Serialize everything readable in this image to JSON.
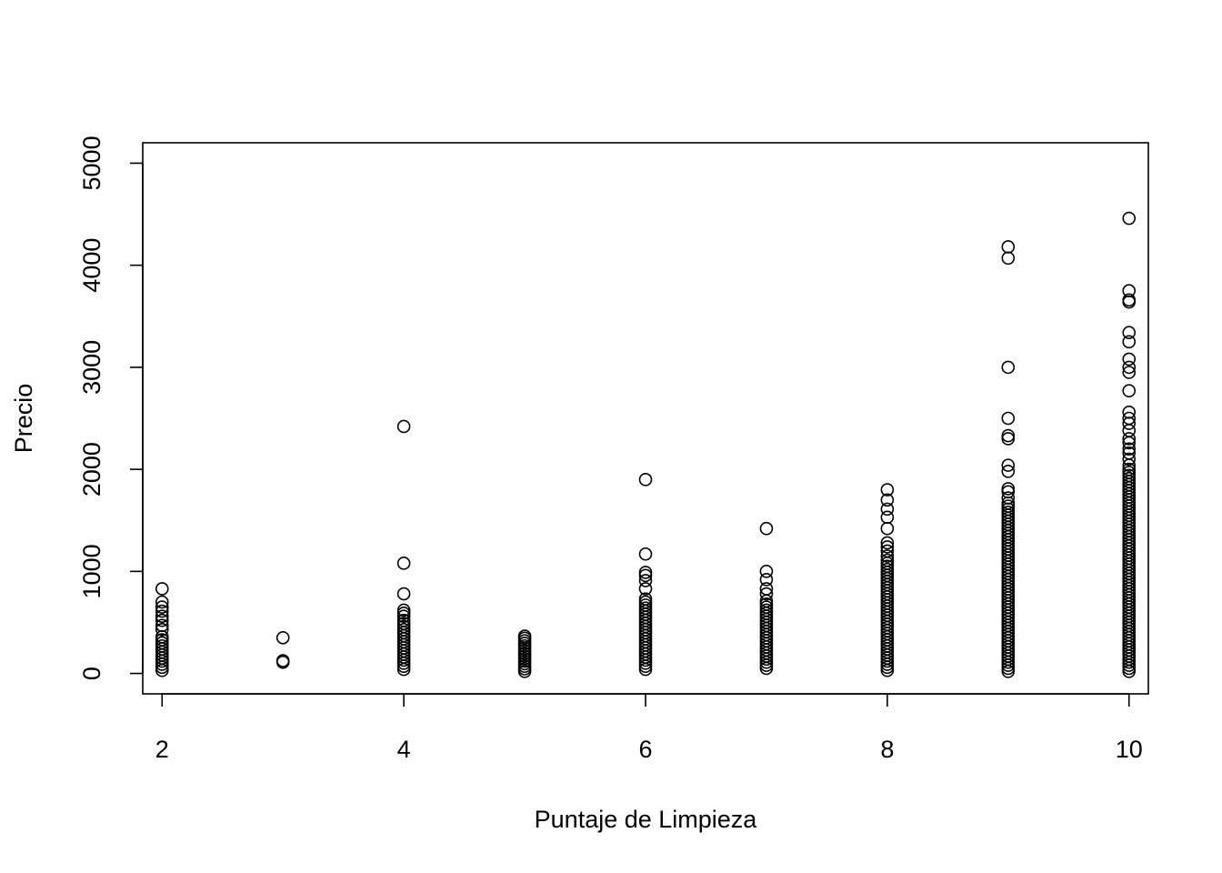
{
  "chart_data": {
    "type": "scatter",
    "title": "",
    "xlabel": "Puntaje de Limpieza",
    "ylabel": "Precio",
    "xlim": [
      1.84,
      10.16
    ],
    "ylim": [
      -200,
      5200
    ],
    "grid": false,
    "legend": "none",
    "x_ticks": [
      2,
      4,
      6,
      8,
      10
    ],
    "x_tick_labels": [
      "2",
      "4",
      "6",
      "8",
      "10"
    ],
    "y_ticks": [
      0,
      1000,
      2000,
      3000,
      4000,
      5000
    ],
    "y_tick_labels": [
      "0",
      "1000",
      "2000",
      "3000",
      "4000",
      "5000"
    ],
    "marker": "open-circle",
    "series": [
      {
        "points": [
          [
            2,
            30
          ],
          [
            2,
            60
          ],
          [
            2,
            90
          ],
          [
            2,
            120
          ],
          [
            2,
            150
          ],
          [
            2,
            180
          ],
          [
            2,
            210
          ],
          [
            2,
            240
          ],
          [
            2,
            270
          ],
          [
            2,
            300
          ],
          [
            2,
            330
          ],
          [
            2,
            360
          ],
          [
            2,
            430
          ],
          [
            2,
            470
          ],
          [
            2,
            520
          ],
          [
            2,
            560
          ],
          [
            2,
            610
          ],
          [
            2,
            650
          ],
          [
            2,
            700
          ],
          [
            2,
            830
          ],
          [
            3,
            110
          ],
          [
            3,
            125
          ],
          [
            3,
            350
          ],
          [
            4,
            40
          ],
          [
            4,
            70
          ],
          [
            4,
            100
          ],
          [
            4,
            130
          ],
          [
            4,
            160
          ],
          [
            4,
            190
          ],
          [
            4,
            220
          ],
          [
            4,
            250
          ],
          [
            4,
            280
          ],
          [
            4,
            310
          ],
          [
            4,
            340
          ],
          [
            4,
            370
          ],
          [
            4,
            400
          ],
          [
            4,
            430
          ],
          [
            4,
            460
          ],
          [
            4,
            490
          ],
          [
            4,
            520
          ],
          [
            4,
            560
          ],
          [
            4,
            590
          ],
          [
            4,
            620
          ],
          [
            4,
            780
          ],
          [
            4,
            1080
          ],
          [
            4,
            2420
          ],
          [
            5,
            20
          ],
          [
            5,
            45
          ],
          [
            5,
            70
          ],
          [
            5,
            95
          ],
          [
            5,
            120
          ],
          [
            5,
            145
          ],
          [
            5,
            170
          ],
          [
            5,
            195
          ],
          [
            5,
            220
          ],
          [
            5,
            245
          ],
          [
            5,
            270
          ],
          [
            5,
            295
          ],
          [
            5,
            320
          ],
          [
            5,
            345
          ],
          [
            5,
            365
          ],
          [
            6,
            40
          ],
          [
            6,
            70
          ],
          [
            6,
            100
          ],
          [
            6,
            130
          ],
          [
            6,
            160
          ],
          [
            6,
            190
          ],
          [
            6,
            220
          ],
          [
            6,
            250
          ],
          [
            6,
            280
          ],
          [
            6,
            310
          ],
          [
            6,
            340
          ],
          [
            6,
            370
          ],
          [
            6,
            400
          ],
          [
            6,
            430
          ],
          [
            6,
            460
          ],
          [
            6,
            490
          ],
          [
            6,
            520
          ],
          [
            6,
            550
          ],
          [
            6,
            580
          ],
          [
            6,
            610
          ],
          [
            6,
            640
          ],
          [
            6,
            670
          ],
          [
            6,
            700
          ],
          [
            6,
            730
          ],
          [
            6,
            830
          ],
          [
            6,
            910
          ],
          [
            6,
            960
          ],
          [
            6,
            990
          ],
          [
            6,
            1170
          ],
          [
            6,
            1900
          ],
          [
            7,
            50
          ],
          [
            7,
            80
          ],
          [
            7,
            110
          ],
          [
            7,
            140
          ],
          [
            7,
            170
          ],
          [
            7,
            200
          ],
          [
            7,
            230
          ],
          [
            7,
            260
          ],
          [
            7,
            290
          ],
          [
            7,
            320
          ],
          [
            7,
            350
          ],
          [
            7,
            380
          ],
          [
            7,
            410
          ],
          [
            7,
            440
          ],
          [
            7,
            470
          ],
          [
            7,
            500
          ],
          [
            7,
            530
          ],
          [
            7,
            560
          ],
          [
            7,
            590
          ],
          [
            7,
            620
          ],
          [
            7,
            650
          ],
          [
            7,
            680
          ],
          [
            7,
            710
          ],
          [
            7,
            780
          ],
          [
            7,
            830
          ],
          [
            7,
            920
          ],
          [
            7,
            1000
          ],
          [
            7,
            1420
          ],
          [
            8,
            30
          ],
          [
            8,
            60
          ],
          [
            8,
            90
          ],
          [
            8,
            120
          ],
          [
            8,
            150
          ],
          [
            8,
            180
          ],
          [
            8,
            210
          ],
          [
            8,
            240
          ],
          [
            8,
            270
          ],
          [
            8,
            300
          ],
          [
            8,
            330
          ],
          [
            8,
            360
          ],
          [
            8,
            390
          ],
          [
            8,
            420
          ],
          [
            8,
            450
          ],
          [
            8,
            480
          ],
          [
            8,
            510
          ],
          [
            8,
            540
          ],
          [
            8,
            570
          ],
          [
            8,
            600
          ],
          [
            8,
            630
          ],
          [
            8,
            660
          ],
          [
            8,
            690
          ],
          [
            8,
            720
          ],
          [
            8,
            750
          ],
          [
            8,
            780
          ],
          [
            8,
            810
          ],
          [
            8,
            840
          ],
          [
            8,
            870
          ],
          [
            8,
            900
          ],
          [
            8,
            930
          ],
          [
            8,
            960
          ],
          [
            8,
            990
          ],
          [
            8,
            1020
          ],
          [
            8,
            1050
          ],
          [
            8,
            1080
          ],
          [
            8,
            1110
          ],
          [
            8,
            1150
          ],
          [
            8,
            1200
          ],
          [
            8,
            1240
          ],
          [
            8,
            1280
          ],
          [
            8,
            1420
          ],
          [
            8,
            1530
          ],
          [
            8,
            1610
          ],
          [
            8,
            1700
          ],
          [
            8,
            1800
          ],
          [
            9,
            20
          ],
          [
            9,
            50
          ],
          [
            9,
            80
          ],
          [
            9,
            110
          ],
          [
            9,
            140
          ],
          [
            9,
            170
          ],
          [
            9,
            200
          ],
          [
            9,
            230
          ],
          [
            9,
            260
          ],
          [
            9,
            290
          ],
          [
            9,
            320
          ],
          [
            9,
            350
          ],
          [
            9,
            380
          ],
          [
            9,
            410
          ],
          [
            9,
            440
          ],
          [
            9,
            470
          ],
          [
            9,
            500
          ],
          [
            9,
            530
          ],
          [
            9,
            560
          ],
          [
            9,
            590
          ],
          [
            9,
            620
          ],
          [
            9,
            650
          ],
          [
            9,
            680
          ],
          [
            9,
            710
          ],
          [
            9,
            740
          ],
          [
            9,
            770
          ],
          [
            9,
            800
          ],
          [
            9,
            830
          ],
          [
            9,
            860
          ],
          [
            9,
            890
          ],
          [
            9,
            920
          ],
          [
            9,
            950
          ],
          [
            9,
            980
          ],
          [
            9,
            1010
          ],
          [
            9,
            1040
          ],
          [
            9,
            1070
          ],
          [
            9,
            1100
          ],
          [
            9,
            1130
          ],
          [
            9,
            1160
          ],
          [
            9,
            1190
          ],
          [
            9,
            1220
          ],
          [
            9,
            1250
          ],
          [
            9,
            1280
          ],
          [
            9,
            1310
          ],
          [
            9,
            1340
          ],
          [
            9,
            1370
          ],
          [
            9,
            1400
          ],
          [
            9,
            1430
          ],
          [
            9,
            1460
          ],
          [
            9,
            1490
          ],
          [
            9,
            1520
          ],
          [
            9,
            1550
          ],
          [
            9,
            1580
          ],
          [
            9,
            1610
          ],
          [
            9,
            1640
          ],
          [
            9,
            1670
          ],
          [
            9,
            1720
          ],
          [
            9,
            1780
          ],
          [
            9,
            1810
          ],
          [
            9,
            1980
          ],
          [
            9,
            2040
          ],
          [
            9,
            2300
          ],
          [
            9,
            2330
          ],
          [
            9,
            2500
          ],
          [
            9,
            3000
          ],
          [
            9,
            4070
          ],
          [
            9,
            4180
          ],
          [
            10,
            20
          ],
          [
            10,
            50
          ],
          [
            10,
            80
          ],
          [
            10,
            110
          ],
          [
            10,
            140
          ],
          [
            10,
            170
          ],
          [
            10,
            200
          ],
          [
            10,
            230
          ],
          [
            10,
            260
          ],
          [
            10,
            290
          ],
          [
            10,
            320
          ],
          [
            10,
            350
          ],
          [
            10,
            380
          ],
          [
            10,
            410
          ],
          [
            10,
            440
          ],
          [
            10,
            470
          ],
          [
            10,
            500
          ],
          [
            10,
            530
          ],
          [
            10,
            560
          ],
          [
            10,
            590
          ],
          [
            10,
            620
          ],
          [
            10,
            650
          ],
          [
            10,
            680
          ],
          [
            10,
            710
          ],
          [
            10,
            740
          ],
          [
            10,
            770
          ],
          [
            10,
            800
          ],
          [
            10,
            830
          ],
          [
            10,
            860
          ],
          [
            10,
            890
          ],
          [
            10,
            920
          ],
          [
            10,
            950
          ],
          [
            10,
            980
          ],
          [
            10,
            1010
          ],
          [
            10,
            1040
          ],
          [
            10,
            1070
          ],
          [
            10,
            1100
          ],
          [
            10,
            1130
          ],
          [
            10,
            1160
          ],
          [
            10,
            1190
          ],
          [
            10,
            1220
          ],
          [
            10,
            1250
          ],
          [
            10,
            1280
          ],
          [
            10,
            1310
          ],
          [
            10,
            1340
          ],
          [
            10,
            1370
          ],
          [
            10,
            1400
          ],
          [
            10,
            1430
          ],
          [
            10,
            1460
          ],
          [
            10,
            1490
          ],
          [
            10,
            1520
          ],
          [
            10,
            1550
          ],
          [
            10,
            1580
          ],
          [
            10,
            1610
          ],
          [
            10,
            1640
          ],
          [
            10,
            1670
          ],
          [
            10,
            1700
          ],
          [
            10,
            1730
          ],
          [
            10,
            1760
          ],
          [
            10,
            1790
          ],
          [
            10,
            1820
          ],
          [
            10,
            1850
          ],
          [
            10,
            1880
          ],
          [
            10,
            1910
          ],
          [
            10,
            1940
          ],
          [
            10,
            1970
          ],
          [
            10,
            2000
          ],
          [
            10,
            2040
          ],
          [
            10,
            2100
          ],
          [
            10,
            2160
          ],
          [
            10,
            2200
          ],
          [
            10,
            2260
          ],
          [
            10,
            2300
          ],
          [
            10,
            2380
          ],
          [
            10,
            2450
          ],
          [
            10,
            2500
          ],
          [
            10,
            2560
          ],
          [
            10,
            2770
          ],
          [
            10,
            2950
          ],
          [
            10,
            3000
          ],
          [
            10,
            3080
          ],
          [
            10,
            3250
          ],
          [
            10,
            3340
          ],
          [
            10,
            3640
          ],
          [
            10,
            3660
          ],
          [
            10,
            3750
          ],
          [
            10,
            4460
          ]
        ]
      }
    ]
  }
}
